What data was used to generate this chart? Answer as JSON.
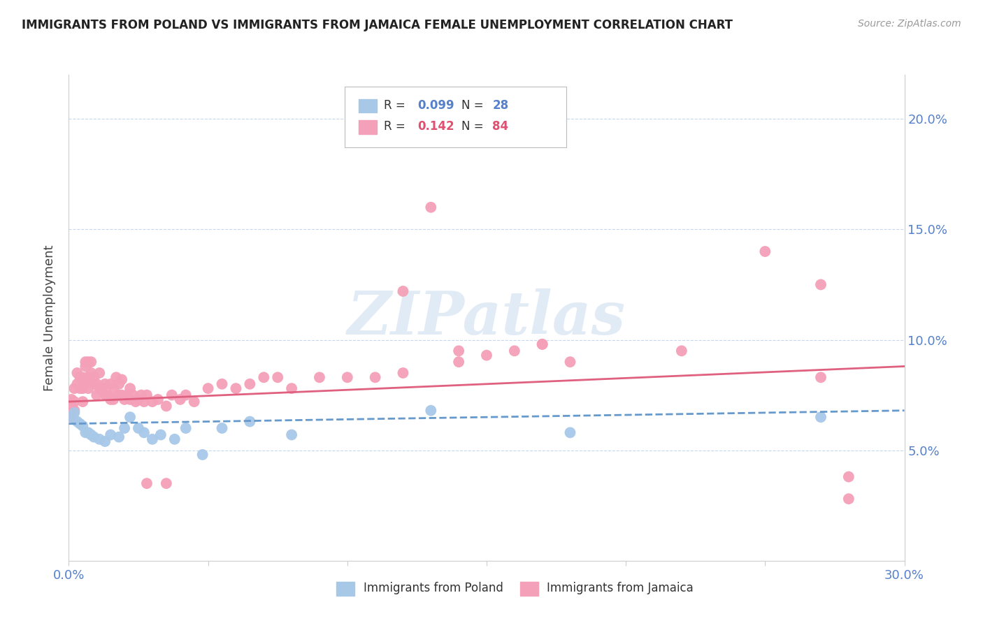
{
  "title": "IMMIGRANTS FROM POLAND VS IMMIGRANTS FROM JAMAICA FEMALE UNEMPLOYMENT CORRELATION CHART",
  "source": "Source: ZipAtlas.com",
  "ylabel": "Female Unemployment",
  "xlim": [
    0.0,
    0.3
  ],
  "ylim": [
    0.0,
    0.22
  ],
  "yticks": [
    0.05,
    0.1,
    0.15,
    0.2
  ],
  "ytick_labels": [
    "5.0%",
    "10.0%",
    "15.0%",
    "20.0%"
  ],
  "xticks": [
    0.0,
    0.05,
    0.1,
    0.15,
    0.2,
    0.25,
    0.3
  ],
  "xtick_labels": [
    "0.0%",
    "",
    "",
    "",
    "",
    "",
    "30.0%"
  ],
  "R_poland": 0.099,
  "N_poland": 28,
  "R_jamaica": 0.142,
  "N_jamaica": 84,
  "poland_color": "#a8c8e8",
  "jamaica_color": "#f4a0b8",
  "poland_line_color": "#6699cc",
  "jamaica_line_color": "#e06080",
  "watermark": "ZIPatlas",
  "poland_x": [
    0.001,
    0.002,
    0.003,
    0.004,
    0.005,
    0.006,
    0.007,
    0.008,
    0.009,
    0.011,
    0.013,
    0.015,
    0.018,
    0.02,
    0.022,
    0.025,
    0.027,
    0.03,
    0.033,
    0.038,
    0.042,
    0.048,
    0.055,
    0.065,
    0.08,
    0.13,
    0.18,
    0.27
  ],
  "poland_y": [
    0.065,
    0.067,
    0.063,
    0.062,
    0.061,
    0.058,
    0.058,
    0.057,
    0.056,
    0.055,
    0.054,
    0.057,
    0.056,
    0.06,
    0.065,
    0.06,
    0.058,
    0.055,
    0.057,
    0.055,
    0.06,
    0.048,
    0.06,
    0.063,
    0.057,
    0.068,
    0.058,
    0.065
  ],
  "jamaica_x": [
    0.001,
    0.001,
    0.001,
    0.002,
    0.002,
    0.002,
    0.003,
    0.003,
    0.004,
    0.004,
    0.005,
    0.005,
    0.005,
    0.006,
    0.006,
    0.006,
    0.007,
    0.007,
    0.007,
    0.008,
    0.008,
    0.009,
    0.009,
    0.01,
    0.01,
    0.011,
    0.011,
    0.012,
    0.013,
    0.013,
    0.014,
    0.015,
    0.015,
    0.016,
    0.016,
    0.017,
    0.018,
    0.018,
    0.019,
    0.019,
    0.02,
    0.021,
    0.022,
    0.022,
    0.023,
    0.024,
    0.025,
    0.026,
    0.027,
    0.028,
    0.03,
    0.032,
    0.035,
    0.037,
    0.04,
    0.042,
    0.045,
    0.05,
    0.055,
    0.06,
    0.065,
    0.07,
    0.075,
    0.08,
    0.09,
    0.1,
    0.11,
    0.12,
    0.14,
    0.15,
    0.16,
    0.17,
    0.18,
    0.22,
    0.25,
    0.27,
    0.028,
    0.035,
    0.12,
    0.14,
    0.17,
    0.27,
    0.28,
    0.28
  ],
  "jamaica_y": [
    0.065,
    0.07,
    0.073,
    0.068,
    0.072,
    0.078,
    0.08,
    0.085,
    0.078,
    0.083,
    0.072,
    0.078,
    0.083,
    0.08,
    0.088,
    0.09,
    0.078,
    0.083,
    0.09,
    0.085,
    0.09,
    0.08,
    0.083,
    0.075,
    0.08,
    0.078,
    0.085,
    0.078,
    0.075,
    0.08,
    0.075,
    0.073,
    0.08,
    0.073,
    0.078,
    0.083,
    0.075,
    0.08,
    0.075,
    0.082,
    0.073,
    0.075,
    0.073,
    0.078,
    0.075,
    0.072,
    0.073,
    0.075,
    0.072,
    0.075,
    0.072,
    0.073,
    0.07,
    0.075,
    0.073,
    0.075,
    0.072,
    0.078,
    0.08,
    0.078,
    0.08,
    0.083,
    0.083,
    0.078,
    0.083,
    0.083,
    0.083,
    0.085,
    0.09,
    0.093,
    0.095,
    0.098,
    0.09,
    0.095,
    0.14,
    0.125,
    0.035,
    0.035,
    0.122,
    0.095,
    0.098,
    0.083,
    0.038,
    0.028
  ],
  "jamaica_outlier_x": [
    0.13
  ],
  "jamaica_outlier_y": [
    0.16
  ]
}
